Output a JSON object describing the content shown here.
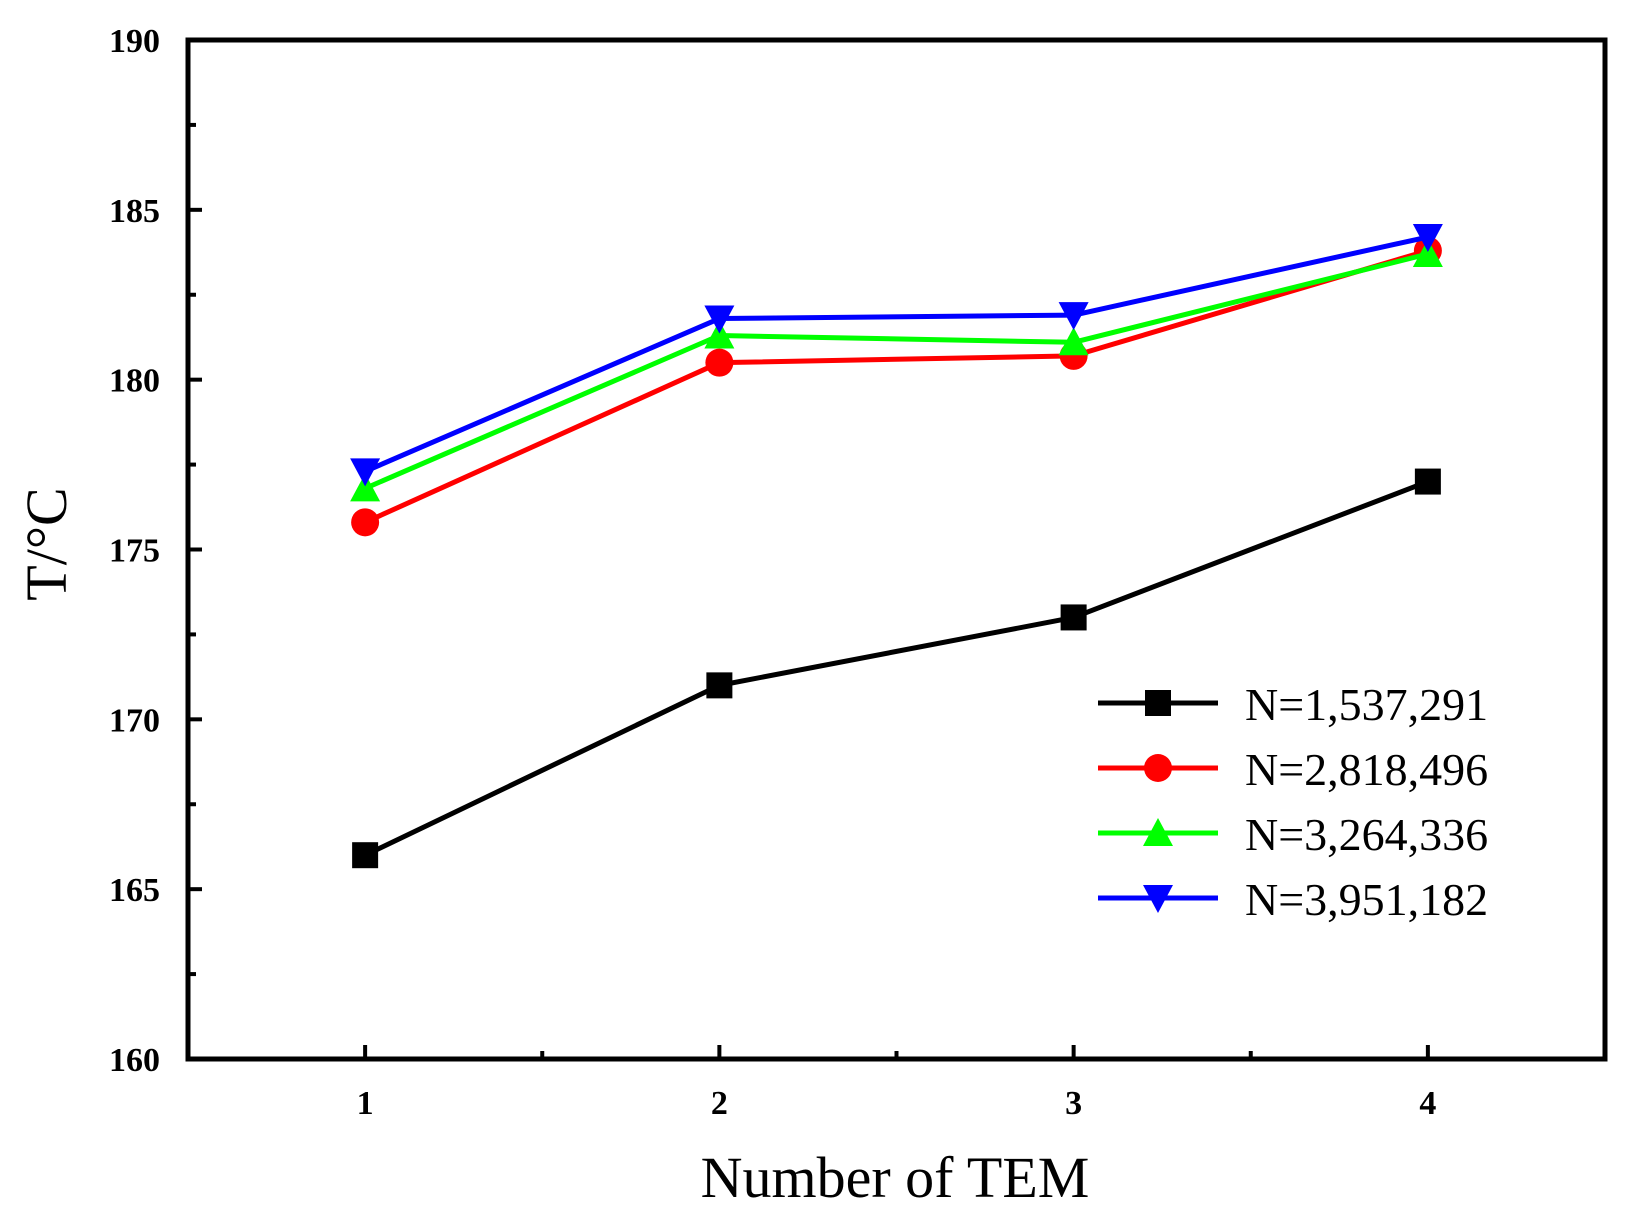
{
  "chart_data": {
    "type": "line",
    "title": "",
    "xlabel": "Number of TEM",
    "ylabel": "T/°C",
    "x": [
      1,
      2,
      3,
      4
    ],
    "xlim": [
      0.5,
      4.5
    ],
    "ylim": [
      160,
      190
    ],
    "x_ticks": [
      1,
      2,
      3,
      4
    ],
    "x_tick_labels": [
      "1",
      "2",
      "3",
      "4"
    ],
    "y_ticks": [
      160,
      165,
      170,
      175,
      180,
      185,
      190
    ],
    "y_tick_labels": [
      "160",
      "165",
      "170",
      "175",
      "180",
      "185",
      "190"
    ],
    "grid": false,
    "legend_position": "bottom-right",
    "series": [
      {
        "name": "N=1,537,291",
        "color": "#000000",
        "marker": "square",
        "values": [
          166.0,
          171.0,
          173.0,
          177.0
        ]
      },
      {
        "name": "N=2,818,496",
        "color": "#ff0000",
        "marker": "circle",
        "values": [
          175.8,
          180.5,
          180.7,
          183.8
        ]
      },
      {
        "name": "N=3,264,336",
        "color": "#00ff00",
        "marker": "triangle-up",
        "values": [
          176.8,
          181.3,
          181.1,
          183.7
        ]
      },
      {
        "name": "N=3,951,182",
        "color": "#0000ff",
        "marker": "triangle-down",
        "values": [
          177.3,
          181.8,
          181.9,
          184.2
        ]
      }
    ]
  }
}
